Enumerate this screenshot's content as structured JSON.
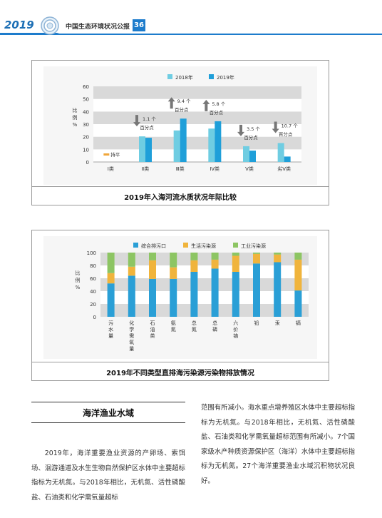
{
  "header": {
    "year": "2019",
    "title": "中国生态环境状况公报",
    "page_number": "36"
  },
  "chart1": {
    "caption": "2019年入海河流水质状况年际比较",
    "chart_data": {
      "type": "bar",
      "title": "",
      "ylabel": "比例%",
      "ylim": [
        0,
        60
      ],
      "yticks": [
        0,
        10,
        20,
        30,
        40,
        50,
        60
      ],
      "categories": [
        "Ⅰ类",
        "Ⅱ类",
        "Ⅲ类",
        "Ⅳ类",
        "Ⅴ类",
        "劣Ⅴ类"
      ],
      "series": [
        {
          "name": "2018年",
          "color": "#6fcde2",
          "values": [
            0,
            20.3,
            25,
            26.5,
            12.5,
            15
          ]
        },
        {
          "name": "2019年",
          "color": "#1f9fd9",
          "values": [
            0,
            19.2,
            34.4,
            32.3,
            9,
            4.3
          ]
        }
      ],
      "legend_position": "top",
      "grid": "banded",
      "annotations": [
        {
          "category": "Ⅰ类",
          "direction": "flat",
          "line1": "持平",
          "line2": ""
        },
        {
          "category": "Ⅱ类",
          "direction": "down",
          "line1": "1.1 个",
          "line2": "百分点"
        },
        {
          "category": "Ⅲ类",
          "direction": "up",
          "line1": "9.4 个",
          "line2": "百分点"
        },
        {
          "category": "Ⅳ类",
          "direction": "up",
          "line1": "5.8 个",
          "line2": "百分点"
        },
        {
          "category": "Ⅴ类",
          "direction": "down",
          "line1": "3.5 个",
          "line2": "百分点"
        },
        {
          "category": "劣Ⅴ类",
          "direction": "down",
          "line1": "10.7 个",
          "line2": "百分点"
        }
      ]
    }
  },
  "chart2": {
    "caption": "2019年不同类型直排海污染源污染物排放情况",
    "chart_data": {
      "type": "bar",
      "stacked": true,
      "title": "",
      "ylabel": "比例%",
      "ylim": [
        0,
        100
      ],
      "yticks": [
        0,
        20,
        40,
        60,
        80,
        100
      ],
      "categories": [
        "污水量",
        "化学需氧量",
        "石油类",
        "氨氮",
        "总氮",
        "总磷",
        "六价铬",
        "铅",
        "汞",
        "镉"
      ],
      "series": [
        {
          "name": "综合排污口",
          "color": "#2a9fd6",
          "values": [
            52,
            64,
            59,
            59,
            70,
            75,
            70,
            83,
            85,
            41
          ]
        },
        {
          "name": "生活污染源",
          "color": "#f0b43c",
          "values": [
            16,
            14,
            29,
            18,
            18,
            14,
            25,
            15,
            12,
            48
          ]
        },
        {
          "name": "工业污染源",
          "color": "#8dc563",
          "values": [
            32,
            22,
            12,
            23,
            12,
            11,
            5,
            2,
            3,
            11
          ]
        }
      ],
      "legend_position": "top",
      "grid": "banded"
    }
  },
  "section": {
    "title": "海洋渔业水域",
    "left_paragraph": "2019年，海洋重要渔业资源的产卵场、索饵场、洄游通道及水生生物自然保护区水体中主要超标指标为无机氮。与2018年相比，无机氮、活性磷酸盐、石油类和化学需氧量超标",
    "right_paragraph": "范围有所减小。海水重点增养殖区水体中主要超标指标为无机氮。与2018年相比，无机氮、活性磷酸盐、石油类和化学需氧量超标范围有所减小。7个国家级水产种质资源保护区（海洋）水体中主要超标指标为无机氮。27个海洋重要渔业水域沉积物状况良好。"
  }
}
